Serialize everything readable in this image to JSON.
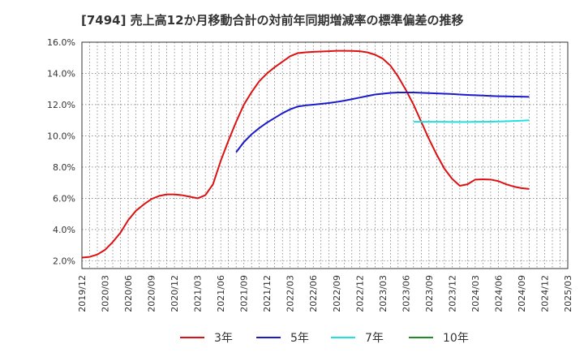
{
  "chart_data": {
    "type": "line",
    "title": "[7494]  売上高12か月移動合計の対前年同期増減率の標準偏差の推移",
    "x_ticks": [
      "2019/12",
      "2020/03",
      "2020/06",
      "2020/09",
      "2020/12",
      "2021/03",
      "2021/06",
      "2021/09",
      "2021/12",
      "2022/03",
      "2022/06",
      "2022/09",
      "2022/12",
      "2023/03",
      "2023/06",
      "2023/09",
      "2023/12",
      "2024/03",
      "2024/06",
      "2024/09",
      "2024/12",
      "2025/03"
    ],
    "y_ticks": [
      "2.0%",
      "4.0%",
      "6.0%",
      "8.0%",
      "10.0%",
      "12.0%",
      "14.0%",
      "16.0%"
    ],
    "ylim": [
      1.5,
      16.0
    ],
    "grid": true,
    "legend_position": "bottom",
    "series": [
      {
        "name": "3年",
        "color": "#dd1111",
        "points": [
          [
            "2019/12",
            2.2
          ],
          [
            "2020/01",
            2.25
          ],
          [
            "2020/02",
            2.4
          ],
          [
            "2020/03",
            2.7
          ],
          [
            "2020/04",
            3.2
          ],
          [
            "2020/05",
            3.8
          ],
          [
            "2020/06",
            4.6
          ],
          [
            "2020/07",
            5.2
          ],
          [
            "2020/08",
            5.6
          ],
          [
            "2020/09",
            5.95
          ],
          [
            "2020/10",
            6.15
          ],
          [
            "2020/11",
            6.25
          ],
          [
            "2020/12",
            6.25
          ],
          [
            "2021/01",
            6.2
          ],
          [
            "2021/02",
            6.1
          ],
          [
            "2021/03",
            6.0
          ],
          [
            "2021/04",
            6.2
          ],
          [
            "2021/05",
            6.9
          ],
          [
            "2021/06",
            8.4
          ],
          [
            "2021/07",
            9.7
          ],
          [
            "2021/08",
            10.9
          ],
          [
            "2021/09",
            12.0
          ],
          [
            "2021/10",
            12.8
          ],
          [
            "2021/11",
            13.5
          ],
          [
            "2021/12",
            14.0
          ],
          [
            "2022/01",
            14.4
          ],
          [
            "2022/02",
            14.75
          ],
          [
            "2022/03",
            15.1
          ],
          [
            "2022/04",
            15.3
          ],
          [
            "2022/05",
            15.35
          ],
          [
            "2022/06",
            15.38
          ],
          [
            "2022/07",
            15.4
          ],
          [
            "2022/08",
            15.42
          ],
          [
            "2022/09",
            15.45
          ],
          [
            "2022/10",
            15.45
          ],
          [
            "2022/11",
            15.44
          ],
          [
            "2022/12",
            15.42
          ],
          [
            "2023/01",
            15.35
          ],
          [
            "2023/02",
            15.2
          ],
          [
            "2023/03",
            14.95
          ],
          [
            "2023/04",
            14.5
          ],
          [
            "2023/05",
            13.8
          ],
          [
            "2023/06",
            12.95
          ],
          [
            "2023/07",
            12.0
          ],
          [
            "2023/08",
            10.9
          ],
          [
            "2023/09",
            9.8
          ],
          [
            "2023/10",
            8.8
          ],
          [
            "2023/11",
            7.9
          ],
          [
            "2023/12",
            7.25
          ],
          [
            "2024/01",
            6.8
          ],
          [
            "2024/02",
            6.9
          ],
          [
            "2024/03",
            7.2
          ],
          [
            "2024/04",
            7.22
          ],
          [
            "2024/05",
            7.2
          ],
          [
            "2024/06",
            7.1
          ],
          [
            "2024/07",
            6.9
          ],
          [
            "2024/08",
            6.75
          ],
          [
            "2024/09",
            6.65
          ],
          [
            "2024/10",
            6.6
          ]
        ]
      },
      {
        "name": "5年",
        "color": "#1a1acc",
        "points": [
          [
            "2021/08",
            8.95
          ],
          [
            "2021/09",
            9.6
          ],
          [
            "2021/10",
            10.1
          ],
          [
            "2021/11",
            10.5
          ],
          [
            "2021/12",
            10.85
          ],
          [
            "2022/01",
            11.15
          ],
          [
            "2022/02",
            11.45
          ],
          [
            "2022/03",
            11.7
          ],
          [
            "2022/04",
            11.88
          ],
          [
            "2022/05",
            11.95
          ],
          [
            "2022/06",
            12.0
          ],
          [
            "2022/07",
            12.05
          ],
          [
            "2022/08",
            12.1
          ],
          [
            "2022/09",
            12.17
          ],
          [
            "2022/10",
            12.25
          ],
          [
            "2022/11",
            12.35
          ],
          [
            "2022/12",
            12.45
          ],
          [
            "2023/01",
            12.55
          ],
          [
            "2023/02",
            12.65
          ],
          [
            "2023/03",
            12.7
          ],
          [
            "2023/04",
            12.75
          ],
          [
            "2023/05",
            12.78
          ],
          [
            "2023/06",
            12.78
          ],
          [
            "2023/07",
            12.78
          ],
          [
            "2023/08",
            12.76
          ],
          [
            "2023/09",
            12.74
          ],
          [
            "2023/10",
            12.72
          ],
          [
            "2023/11",
            12.7
          ],
          [
            "2023/12",
            12.68
          ],
          [
            "2024/01",
            12.65
          ],
          [
            "2024/02",
            12.62
          ],
          [
            "2024/03",
            12.6
          ],
          [
            "2024/04",
            12.58
          ],
          [
            "2024/05",
            12.56
          ],
          [
            "2024/06",
            12.54
          ],
          [
            "2024/07",
            12.53
          ],
          [
            "2024/08",
            12.52
          ],
          [
            "2024/09",
            12.51
          ],
          [
            "2024/10",
            12.5
          ]
        ]
      },
      {
        "name": "7年",
        "color": "#22e0e0",
        "points": [
          [
            "2023/07",
            10.9
          ],
          [
            "2023/08",
            10.9
          ],
          [
            "2023/09",
            10.9
          ],
          [
            "2023/10",
            10.9
          ],
          [
            "2023/11",
            10.9
          ],
          [
            "2023/12",
            10.89
          ],
          [
            "2024/01",
            10.89
          ],
          [
            "2024/02",
            10.89
          ],
          [
            "2024/03",
            10.9
          ],
          [
            "2024/04",
            10.9
          ],
          [
            "2024/05",
            10.91
          ],
          [
            "2024/06",
            10.92
          ],
          [
            "2024/07",
            10.93
          ],
          [
            "2024/08",
            10.95
          ],
          [
            "2024/09",
            10.97
          ],
          [
            "2024/10",
            11.0
          ]
        ]
      },
      {
        "name": "10年",
        "color": "#228b22",
        "points": []
      }
    ]
  }
}
